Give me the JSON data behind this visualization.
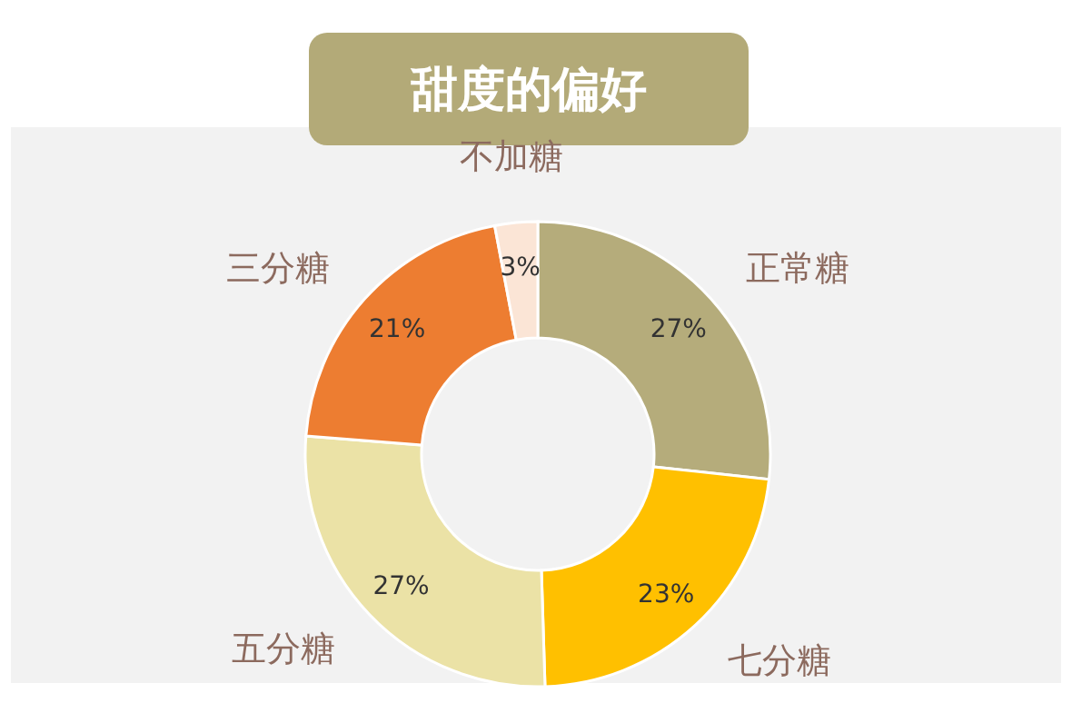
{
  "chart_data": {
    "type": "donut",
    "title": "甜度的偏好",
    "categories": [
      "正常糖",
      "七分糖",
      "五分糖",
      "三分糖",
      "不加糖"
    ],
    "values": [
      27,
      23,
      27,
      21,
      3
    ],
    "colors": [
      "#b5ac7b",
      "#ffc000",
      "#ebe2a6",
      "#ed7d31",
      "#fbe5d6"
    ],
    "value_labels": [
      "27%",
      "23%",
      "27%",
      "21%",
      "3%"
    ]
  }
}
